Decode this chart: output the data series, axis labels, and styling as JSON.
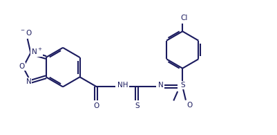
{
  "bg_color": "#ffffff",
  "line_color": "#1a1a5e",
  "line_width": 1.5,
  "font_size": 7.5,
  "fig_width": 4.02,
  "fig_height": 1.95,
  "dpi": 100,
  "xlim": [
    0,
    10.2
  ],
  "ylim": [
    0,
    4.88
  ]
}
